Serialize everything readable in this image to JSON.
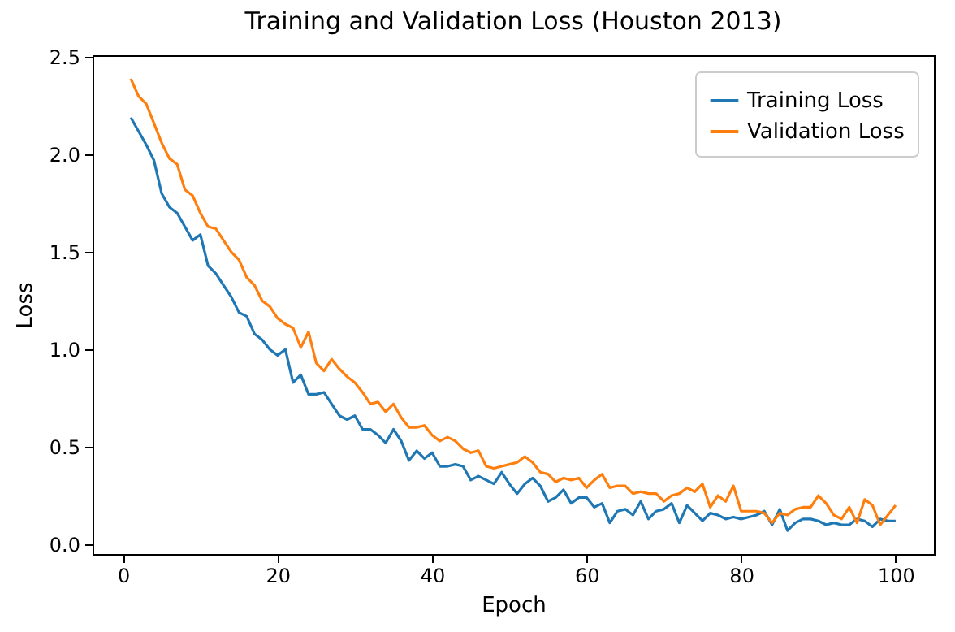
{
  "chart_data": {
    "type": "line",
    "title": "Training and Validation Loss (Houston 2013)",
    "xlabel": "Epoch",
    "ylabel": "Loss",
    "x": [
      1,
      2,
      3,
      4,
      5,
      6,
      7,
      8,
      9,
      10,
      11,
      12,
      13,
      14,
      15,
      16,
      17,
      18,
      19,
      20,
      21,
      22,
      23,
      24,
      25,
      26,
      27,
      28,
      29,
      30,
      31,
      32,
      33,
      34,
      35,
      36,
      37,
      38,
      39,
      40,
      41,
      42,
      43,
      44,
      45,
      46,
      47,
      48,
      49,
      50,
      51,
      52,
      53,
      54,
      55,
      56,
      57,
      58,
      59,
      60,
      61,
      62,
      63,
      64,
      65,
      66,
      67,
      68,
      69,
      70,
      71,
      72,
      73,
      74,
      75,
      76,
      77,
      78,
      79,
      80,
      81,
      82,
      83,
      84,
      85,
      86,
      87,
      88,
      89,
      90,
      91,
      92,
      93,
      94,
      95,
      96,
      97,
      98,
      99,
      100
    ],
    "series": [
      {
        "name": "Training Loss",
        "color": "#1f77b4",
        "values": [
          2.19,
          2.12,
          2.05,
          1.97,
          1.8,
          1.73,
          1.7,
          1.63,
          1.56,
          1.59,
          1.43,
          1.39,
          1.33,
          1.27,
          1.19,
          1.17,
          1.08,
          1.05,
          1.0,
          0.97,
          1.0,
          0.83,
          0.87,
          0.77,
          0.77,
          0.78,
          0.72,
          0.66,
          0.64,
          0.66,
          0.59,
          0.59,
          0.56,
          0.52,
          0.59,
          0.53,
          0.43,
          0.48,
          0.44,
          0.47,
          0.4,
          0.4,
          0.41,
          0.4,
          0.33,
          0.35,
          0.33,
          0.31,
          0.37,
          0.31,
          0.26,
          0.31,
          0.34,
          0.3,
          0.22,
          0.24,
          0.28,
          0.21,
          0.24,
          0.24,
          0.19,
          0.21,
          0.11,
          0.17,
          0.18,
          0.15,
          0.22,
          0.13,
          0.17,
          0.18,
          0.21,
          0.11,
          0.2,
          0.16,
          0.12,
          0.16,
          0.15,
          0.13,
          0.14,
          0.13,
          0.14,
          0.15,
          0.17,
          0.1,
          0.18,
          0.07,
          0.11,
          0.13,
          0.13,
          0.12,
          0.1,
          0.11,
          0.1,
          0.1,
          0.13,
          0.12,
          0.09,
          0.13,
          0.12,
          0.12
        ]
      },
      {
        "name": "Validation Loss",
        "color": "#ff7f0e",
        "values": [
          2.39,
          2.3,
          2.26,
          2.16,
          2.06,
          1.98,
          1.95,
          1.82,
          1.79,
          1.7,
          1.63,
          1.62,
          1.56,
          1.5,
          1.46,
          1.37,
          1.33,
          1.25,
          1.22,
          1.16,
          1.13,
          1.11,
          1.01,
          1.09,
          0.93,
          0.89,
          0.95,
          0.9,
          0.86,
          0.83,
          0.78,
          0.72,
          0.73,
          0.68,
          0.72,
          0.65,
          0.6,
          0.6,
          0.61,
          0.56,
          0.53,
          0.55,
          0.53,
          0.49,
          0.47,
          0.48,
          0.4,
          0.39,
          0.4,
          0.41,
          0.42,
          0.45,
          0.42,
          0.37,
          0.36,
          0.32,
          0.34,
          0.33,
          0.34,
          0.29,
          0.33,
          0.36,
          0.29,
          0.3,
          0.3,
          0.26,
          0.27,
          0.26,
          0.26,
          0.22,
          0.25,
          0.26,
          0.29,
          0.27,
          0.31,
          0.19,
          0.25,
          0.22,
          0.3,
          0.17,
          0.17,
          0.17,
          0.16,
          0.11,
          0.16,
          0.15,
          0.18,
          0.19,
          0.19,
          0.25,
          0.21,
          0.15,
          0.13,
          0.19,
          0.11,
          0.23,
          0.2,
          0.1,
          0.15,
          0.2
        ]
      }
    ],
    "xlim": [
      -3.95,
      104.95
    ],
    "xticks": [
      0,
      20,
      40,
      60,
      80,
      100
    ],
    "ylim": [
      -0.05,
      2.51
    ],
    "yticks": [
      {
        "value": 0,
        "label": "0.0"
      },
      0.5,
      {
        "value": 1,
        "label": "1.0"
      },
      1.5,
      {
        "value": 2,
        "label": "2.0"
      },
      2.5
    ],
    "grid": false,
    "legend": "top right",
    "marker": "none",
    "line_style": "solid"
  }
}
